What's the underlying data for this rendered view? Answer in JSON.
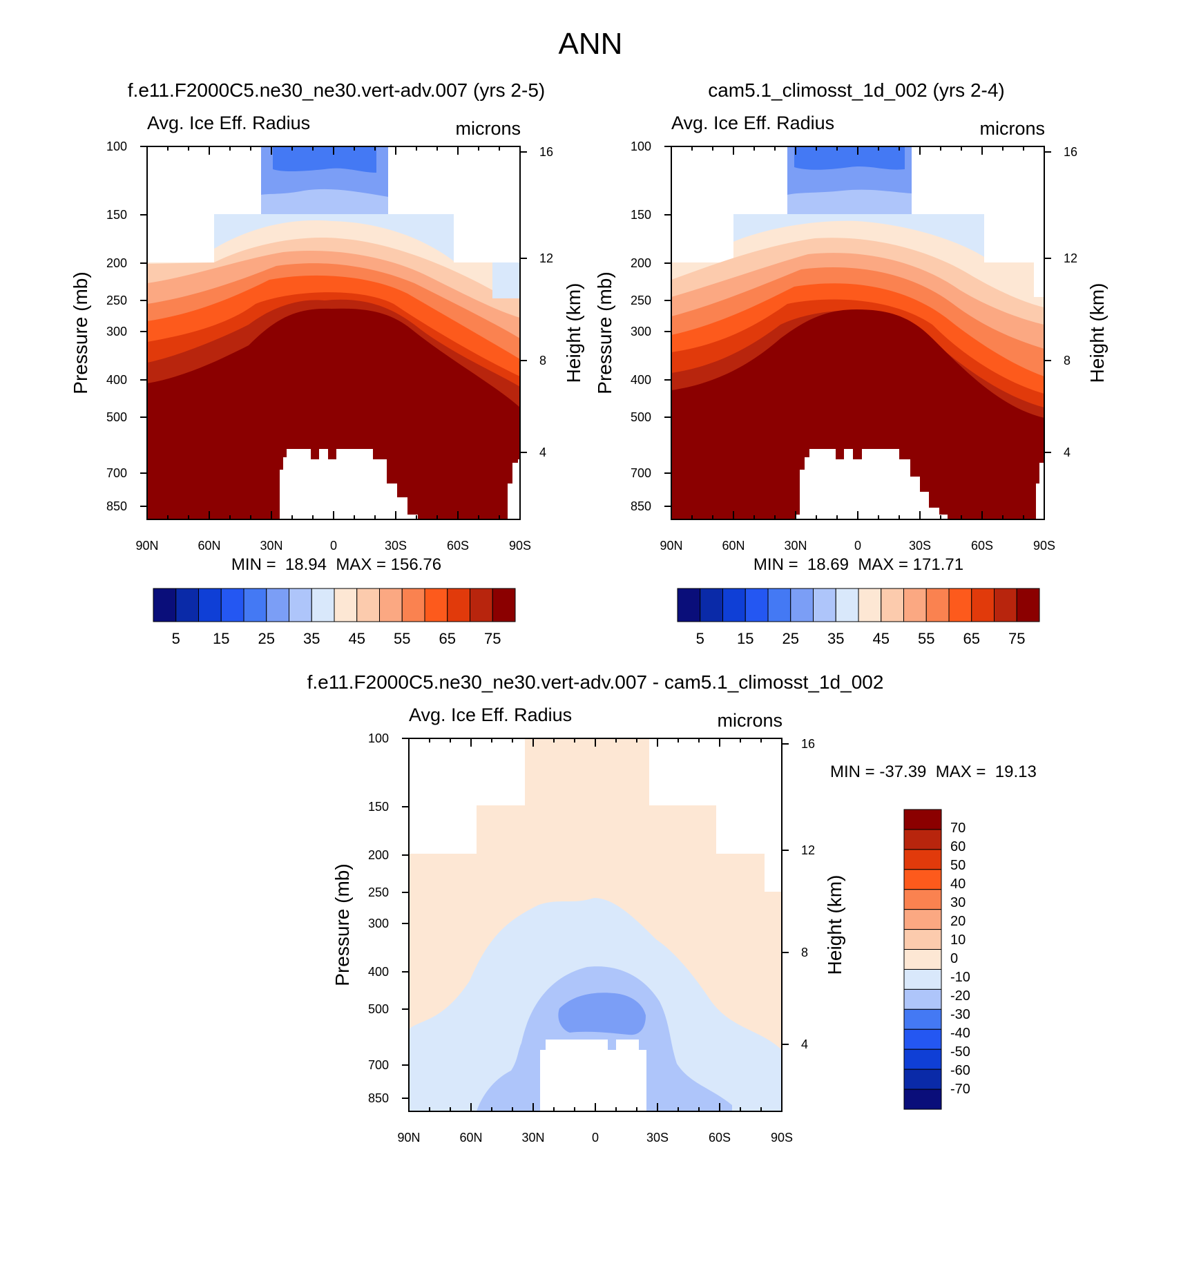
{
  "page_title": "ANN",
  "chart_data": [
    {
      "type": "contour",
      "title": "f.e11.F2000C5.ne30_ne30.vert-adv.007 (yrs 2-5)",
      "left_subtitle": "Avg. Ice Eff. Radius",
      "right_subtitle": "microns",
      "ylabel": "Pressure (mb)",
      "ylabel_right": "Height (km)",
      "x_ticks": [
        "90N",
        "60N",
        "30N",
        "0",
        "30S",
        "60S",
        "90S"
      ],
      "y_ticks": [
        "100",
        "150",
        "200",
        "250",
        "300",
        "400",
        "500",
        "700",
        "850"
      ],
      "y_ticks_right": [
        "16",
        "12",
        "8",
        "4"
      ],
      "stats": "MIN =  18.94  MAX = 156.76",
      "colorbar_labels": [
        "5",
        "15",
        "25",
        "35",
        "45",
        "55",
        "65",
        "75"
      ],
      "levels": [
        0,
        5,
        10,
        15,
        20,
        25,
        30,
        35,
        40,
        45,
        50,
        55,
        60,
        65,
        70,
        75,
        80
      ],
      "min": 18.94,
      "max": 156.76
    },
    {
      "type": "contour",
      "title": "cam5.1_climosst_1d_002 (yrs 2-4)",
      "left_subtitle": "Avg. Ice Eff. Radius",
      "right_subtitle": "microns",
      "ylabel": "Pressure (mb)",
      "ylabel_right": "Height (km)",
      "x_ticks": [
        "90N",
        "60N",
        "30N",
        "0",
        "30S",
        "60S",
        "90S"
      ],
      "y_ticks": [
        "100",
        "150",
        "200",
        "250",
        "300",
        "400",
        "500",
        "700",
        "850"
      ],
      "y_ticks_right": [
        "16",
        "12",
        "8",
        "4"
      ],
      "stats": "MIN =  18.69  MAX = 171.71",
      "colorbar_labels": [
        "5",
        "15",
        "25",
        "35",
        "45",
        "55",
        "65",
        "75"
      ],
      "levels": [
        0,
        5,
        10,
        15,
        20,
        25,
        30,
        35,
        40,
        45,
        50,
        55,
        60,
        65,
        70,
        75,
        80
      ],
      "min": 18.69,
      "max": 171.71
    },
    {
      "type": "contour",
      "title": "f.e11.F2000C5.ne30_ne30.vert-adv.007 - cam5.1_climosst_1d_002",
      "left_subtitle": "Avg. Ice Eff. Radius",
      "right_subtitle": "microns",
      "ylabel": "Pressure (mb)",
      "ylabel_right": "Height (km)",
      "x_ticks": [
        "90N",
        "60N",
        "30N",
        "0",
        "30S",
        "60S",
        "90S"
      ],
      "y_ticks": [
        "100",
        "150",
        "200",
        "250",
        "300",
        "400",
        "500",
        "700",
        "850"
      ],
      "y_ticks_right": [
        "16",
        "12",
        "8",
        "4"
      ],
      "stats": "MIN = -37.39  MAX =  19.13",
      "colorbar_labels": [
        "70",
        "60",
        "50",
        "40",
        "30",
        "20",
        "10",
        "0",
        "-10",
        "-20",
        "-30",
        "-40",
        "-50",
        "-60",
        "-70"
      ],
      "min": -37.39,
      "max": 19.13
    }
  ],
  "colors": {
    "abs_palette": [
      "#0a0e7a",
      "#0a2aa8",
      "#0f3fd6",
      "#2457f2",
      "#4479f4",
      "#7b9ef6",
      "#aec5fa",
      "#d9e8fb",
      "#fde7d4",
      "#fccbad",
      "#fba882",
      "#fa8250",
      "#fd5a1c",
      "#e13a0b",
      "#b8250d",
      "#8b0000"
    ],
    "diff_palette": [
      "#0a0e7a",
      "#0a2aa8",
      "#0f3fd6",
      "#2457f2",
      "#4479f4",
      "#aec5fa",
      "#d9e8fb",
      "#fde7d4",
      "#fccbad",
      "#fba882",
      "#fa8250",
      "#fd5a1c",
      "#e13a0b",
      "#b8250d",
      "#8b0000"
    ]
  }
}
